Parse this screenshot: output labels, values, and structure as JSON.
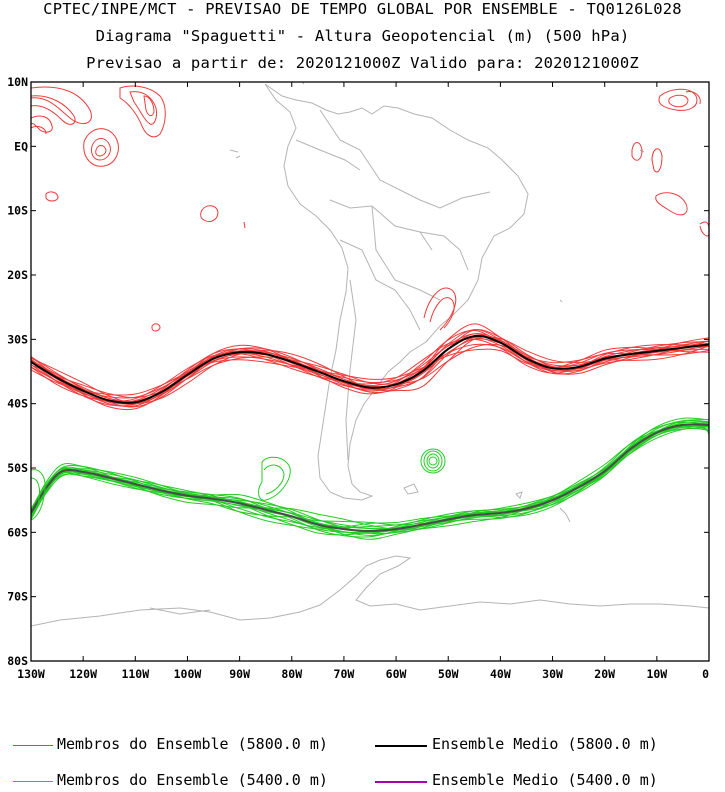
{
  "header": {
    "line1": "CPTEC/INPE/MCT - PREVISAO DE TEMPO GLOBAL POR ENSEMBLE - TQ0126L028",
    "line2": "Diagrama \"Spaguetti\" - Altura Geopotencial (m) (500 hPa)",
    "line3": "Previsao a partir de: 2020121000Z  Valido para: 2020121000Z"
  },
  "axes": {
    "lat_ticks": [
      "10N",
      "EQ",
      "10S",
      "20S",
      "30S",
      "40S",
      "50S",
      "60S",
      "70S",
      "80S"
    ],
    "lon_ticks": [
      "130W",
      "120W",
      "110W",
      "100W",
      "90W",
      "80W",
      "70W",
      "60W",
      "50W",
      "40W",
      "30W",
      "20W",
      "10W",
      "0"
    ]
  },
  "colors": {
    "member_5800": "#ef3b3b",
    "member_5400": "#22cc22",
    "mean_5800": "#000000",
    "mean_5400": "#4a4a4a",
    "mean_5400_legend": "#aa00aa",
    "coast": "#b4b4b4"
  },
  "legend": {
    "members_5800": "Membros do Ensemble (5800.0 m)",
    "mean_5800": "Ensemble Medio (5800.0 m)",
    "members_5400": "Membros do Ensemble (5400.0 m)",
    "mean_5400": "Ensemble Medio (5400.0 m)"
  },
  "map_data": {
    "extent": {
      "lon": [
        -130,
        0
      ],
      "lat": [
        -80,
        10
      ]
    },
    "contour_5800_mean": [
      [
        -130,
        -33.5
      ],
      [
        -125,
        -36
      ],
      [
        -120,
        -38
      ],
      [
        -115,
        -39.5
      ],
      [
        -110,
        -39.8
      ],
      [
        -105,
        -38.2
      ],
      [
        -100,
        -35.5
      ],
      [
        -95,
        -33
      ],
      [
        -90,
        -32
      ],
      [
        -85,
        -32.3
      ],
      [
        -80,
        -33.5
      ],
      [
        -75,
        -35
      ],
      [
        -70,
        -36.5
      ],
      [
        -65,
        -37.5
      ],
      [
        -60,
        -37
      ],
      [
        -55,
        -35
      ],
      [
        -50,
        -31.5
      ],
      [
        -45,
        -29.5
      ],
      [
        -40,
        -30.5
      ],
      [
        -35,
        -33
      ],
      [
        -30,
        -34.5
      ],
      [
        -25,
        -34.3
      ],
      [
        -20,
        -33
      ],
      [
        -15,
        -32.3
      ],
      [
        -10,
        -31.8
      ],
      [
        -5,
        -31.3
      ],
      [
        0,
        -30.8
      ]
    ],
    "contour_5400_mean": [
      [
        -130,
        -57
      ],
      [
        -127,
        -53
      ],
      [
        -124,
        -50.5
      ],
      [
        -120,
        -50.6
      ],
      [
        -115,
        -51.5
      ],
      [
        -110,
        -52.5
      ],
      [
        -105,
        -53.5
      ],
      [
        -100,
        -54.3
      ],
      [
        -95,
        -54.8
      ],
      [
        -90,
        -55.5
      ],
      [
        -85,
        -56.5
      ],
      [
        -80,
        -57.5
      ],
      [
        -75,
        -58.8
      ],
      [
        -70,
        -59.5
      ],
      [
        -65,
        -59.8
      ],
      [
        -60,
        -59.5
      ],
      [
        -55,
        -58.8
      ],
      [
        -50,
        -58
      ],
      [
        -45,
        -57.3
      ],
      [
        -40,
        -57
      ],
      [
        -35,
        -56.3
      ],
      [
        -30,
        -55
      ],
      [
        -25,
        -53
      ],
      [
        -20,
        -50.5
      ],
      [
        -15,
        -47
      ],
      [
        -10,
        -44.5
      ],
      [
        -5,
        -43.3
      ],
      [
        0,
        -43.3
      ]
    ]
  }
}
